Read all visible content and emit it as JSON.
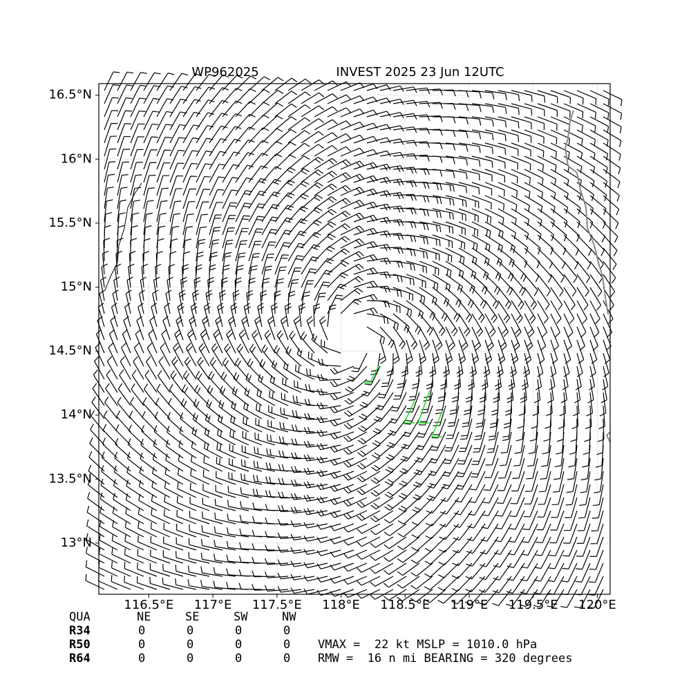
{
  "header": {
    "left": "WP962025",
    "right": "INVEST 2025 23 Jun 12UTC"
  },
  "map": {
    "xlim": [
      116.11,
      120.1
    ],
    "ylim": [
      12.6,
      16.59
    ],
    "xticks": [
      {
        "value": 116.5,
        "label": "116.5°E"
      },
      {
        "value": 117,
        "label": "117°E"
      },
      {
        "value": 117.5,
        "label": "117.5°E"
      },
      {
        "value": 118,
        "label": "118°E"
      },
      {
        "value": 118.5,
        "label": "118.5°E"
      },
      {
        "value": 119,
        "label": "119°E"
      },
      {
        "value": 119.5,
        "label": "119.5°E"
      },
      {
        "value": 120,
        "label": "120°E"
      }
    ],
    "yticks": [
      {
        "value": 13,
        "label": "13°N"
      },
      {
        "value": 13.5,
        "label": "13.5°N"
      },
      {
        "value": 14,
        "label": "14°N"
      },
      {
        "value": 14.5,
        "label": "14.5°N"
      },
      {
        "value": 15,
        "label": "15°N"
      },
      {
        "value": 15.5,
        "label": "15.5°N"
      },
      {
        "value": 16,
        "label": "16°N"
      },
      {
        "value": 16.5,
        "label": "16.5°N"
      }
    ],
    "grid": true
  },
  "table": {
    "columns": [
      "QUA",
      "NE",
      "SE",
      "SW",
      "NW"
    ],
    "rows": [
      [
        "R34",
        0,
        0,
        0,
        0
      ],
      [
        "R50",
        0,
        0,
        0,
        0
      ],
      [
        "R64",
        0,
        0,
        0,
        0
      ]
    ]
  },
  "info": [
    "VMAX =  22 kt MSLP = 1010.0 hPa",
    "RMW =  16 n mi BEARING = 320 degrees"
  ]
}
